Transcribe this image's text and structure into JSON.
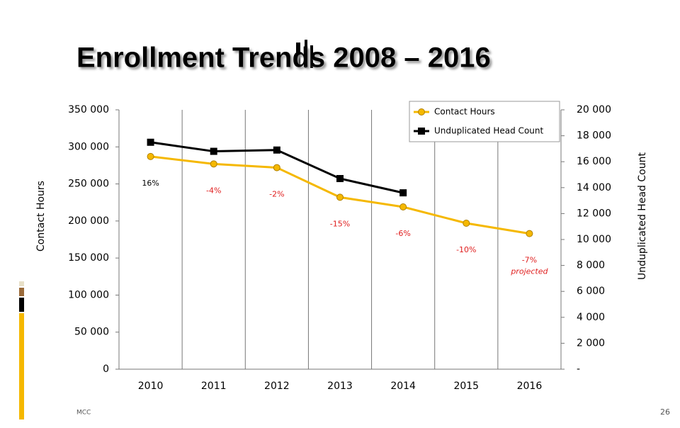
{
  "title": "Enrollment Trends 2008 – 2016",
  "footer": {
    "left": "MCC",
    "page": "26"
  },
  "chart_data": {
    "type": "line",
    "categories": [
      "2010",
      "2011",
      "2012",
      "2013",
      "2014",
      "2015",
      "2016"
    ],
    "series": [
      {
        "name": "Contact Hours",
        "color": "#f5b800",
        "axis": "y",
        "values": [
          287000,
          277000,
          272000,
          232000,
          219000,
          197000,
          183000
        ]
      },
      {
        "name": "Unduplicated Head Count",
        "color": "#000000",
        "axis": "y2",
        "values": [
          17500,
          16800,
          16900,
          14700,
          13600,
          null,
          null
        ]
      }
    ],
    "ylabel": "Contact Hours",
    "y2label": "Unduplicated Head Count",
    "ylim": [
      0,
      350000
    ],
    "yticks": [
      0,
      {
        "value": 50000,
        "label": "50 000"
      },
      {
        "value": 100000,
        "label": "100 000"
      },
      {
        "value": 150000,
        "label": "150 000"
      },
      {
        "value": 200000,
        "label": "200 000"
      },
      {
        "value": 250000,
        "label": "250 000"
      },
      {
        "value": 300000,
        "label": "300 000"
      },
      {
        "value": 350000,
        "label": "350 000"
      }
    ],
    "y2lim": [
      0,
      20000
    ],
    "y2ticks": [
      {
        "value": 0,
        "label": "-"
      },
      {
        "value": 2000,
        "label": "2 000"
      },
      {
        "value": 4000,
        "label": "4 000"
      },
      {
        "value": 6000,
        "label": "6 000"
      },
      {
        "value": 8000,
        "label": "8 000"
      },
      {
        "value": 10000,
        "label": "10 000"
      },
      {
        "value": 12000,
        "label": "12 000"
      },
      {
        "value": 14000,
        "label": "14 000"
      },
      {
        "value": 16000,
        "label": "16 000"
      },
      {
        "value": 18000,
        "label": "18 000"
      },
      {
        "value": 20000,
        "label": "20 000"
      }
    ],
    "annotations": [
      {
        "text": "16%",
        "color": "#000000"
      },
      {
        "text": "-4%",
        "color": "#e02020"
      },
      {
        "text": "-2%",
        "color": "#e02020"
      },
      {
        "text": "-15%",
        "color": "#e02020"
      },
      {
        "text": "-6%",
        "color": "#e02020"
      },
      {
        "text": "-10%",
        "color": "#e02020"
      },
      {
        "text": "-7%",
        "color": "#e02020"
      }
    ],
    "note": "projected",
    "legend": "top-right",
    "vertical_grid": true
  }
}
